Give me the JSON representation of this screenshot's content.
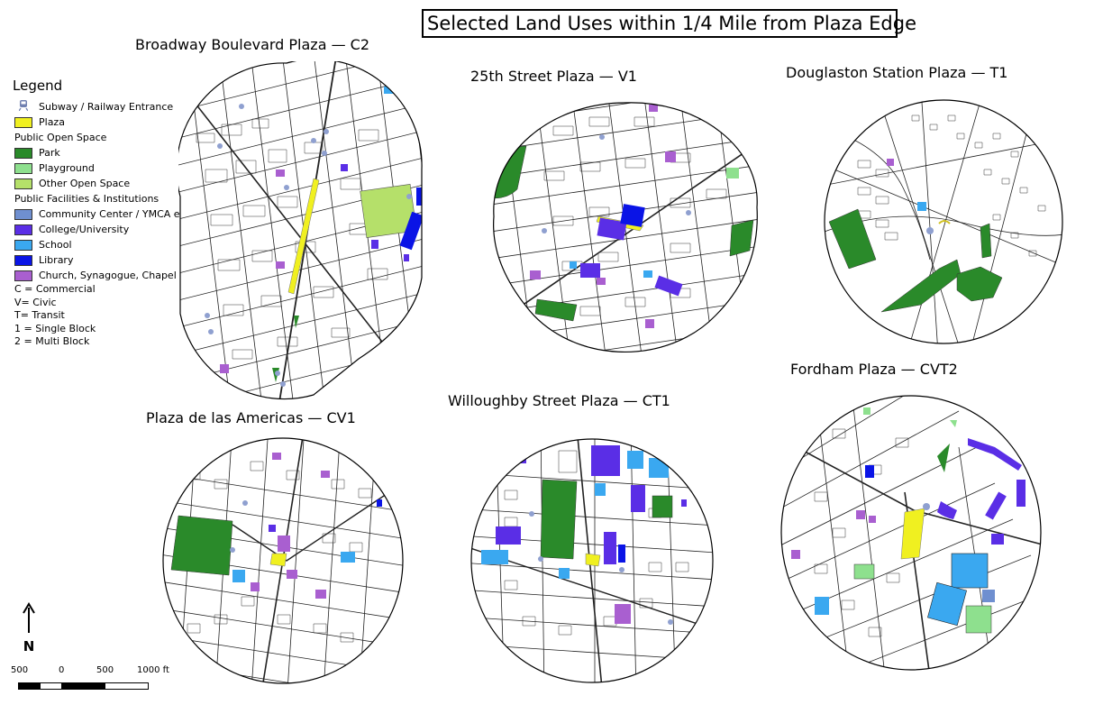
{
  "title": "Selected Land Uses within 1/4 Mile from Plaza Edge",
  "maps": [
    {
      "id": "c2",
      "title": "Broadway Boulevard Plaza — C2"
    },
    {
      "id": "v1",
      "title": "25th Street Plaza — V1"
    },
    {
      "id": "t1",
      "title": "Douglaston Station  Plaza — T1"
    },
    {
      "id": "cv1",
      "title": "Plaza de las Americas — CV1"
    },
    {
      "id": "ct1",
      "title": "Willoughby Street Plaza — CT1"
    },
    {
      "id": "cvt2",
      "title": "Fordham Plaza — CVT2"
    }
  ],
  "legend": {
    "title": "Legend",
    "transit_label": "Subway / Railway Entrance",
    "plaza_label": "Plaza",
    "open_space_header": "Public Open Space",
    "open_space": [
      {
        "label": "Park",
        "color": "#2a8a2a"
      },
      {
        "label": "Playground",
        "color": "#8ee08e"
      },
      {
        "label": "Other Open Space",
        "color": "#b5e06a"
      }
    ],
    "facilities_header": "Public Facilities & Institutions",
    "facilities": [
      {
        "label": "Community Center / YMCA etc.",
        "color": "#6f8fd0"
      },
      {
        "label": "College/University",
        "color": "#5a2ee6"
      },
      {
        "label": "School",
        "color": "#3aa8f0"
      },
      {
        "label": "Library",
        "color": "#0a14e6"
      },
      {
        "label": "Church, Synagogue, Chapel",
        "color": "#a95fd0"
      }
    ],
    "plaza_color": "#f0f020",
    "abbreviations": [
      "C = Commercial",
      "V= Civic",
      "T= Transit",
      "1 = Single Block",
      "2 = Multi Block"
    ]
  },
  "north_label": "N",
  "scale_labels": [
    "500",
    "0",
    "500",
    "1000 ft"
  ]
}
